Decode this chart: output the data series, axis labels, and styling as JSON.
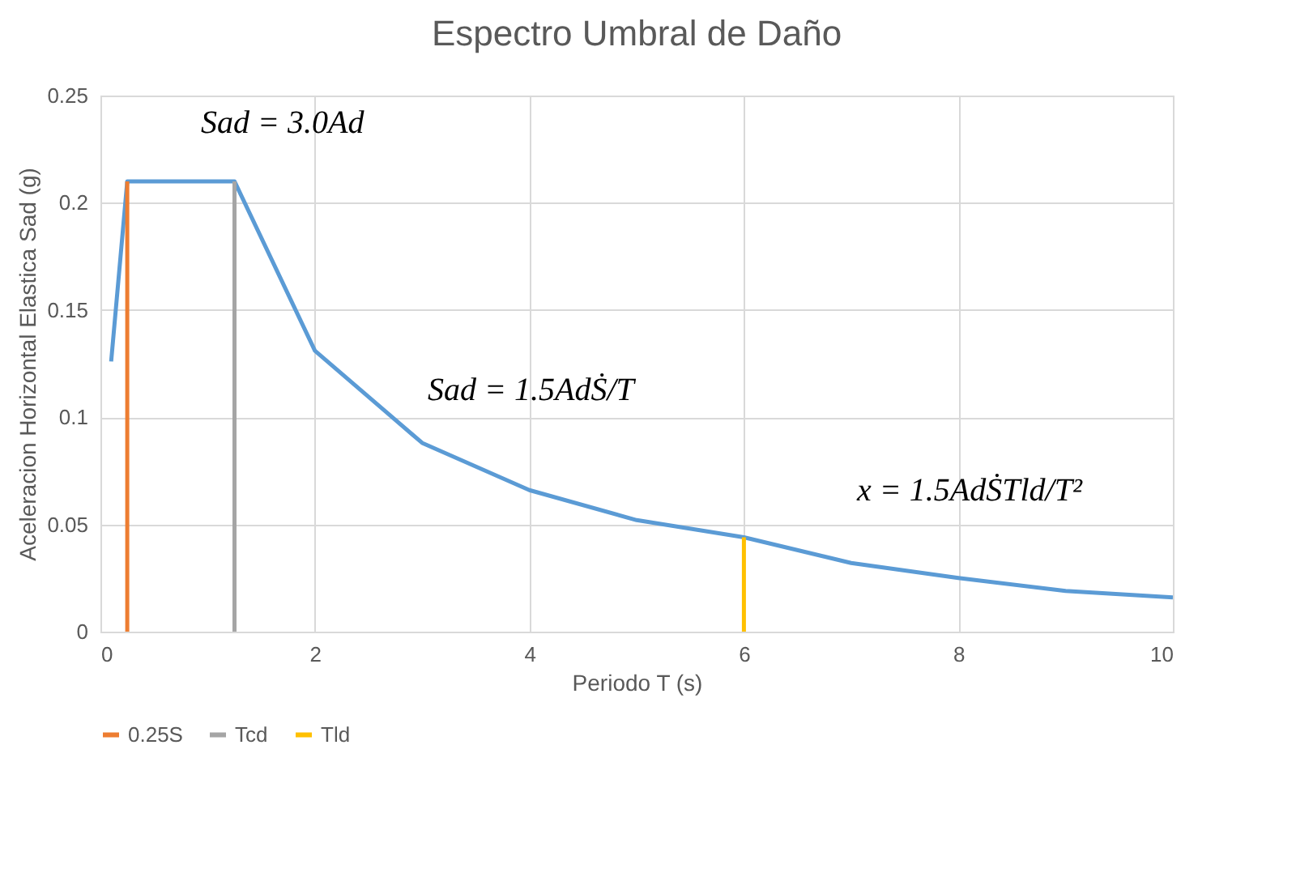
{
  "chart_data": {
    "type": "line",
    "title": "Espectro Umbral de Daño",
    "xlabel": "Periodo T (s)",
    "ylabel": "Aceleracion Horizontal Elastica Sad (g)",
    "xlim": [
      0,
      10
    ],
    "xticks": [
      0,
      2,
      4,
      6,
      8,
      10
    ],
    "ylim": [
      0,
      0.25
    ],
    "yticks": [
      0,
      0.05,
      0.1,
      0.15,
      0.2,
      0.25
    ],
    "grid": true,
    "legend": "bottom",
    "series": [
      {
        "color": "#5b9bd5",
        "x": [
          0.1,
          0.25,
          1.25,
          2,
          3,
          4,
          5,
          6,
          7,
          8,
          9,
          10
        ],
        "values": [
          0.126,
          0.21,
          0.21,
          0.131,
          0.088,
          0.066,
          0.052,
          0.044,
          0.032,
          0.025,
          0.019,
          0.016
        ]
      },
      {
        "name": "0.25S",
        "color": "#ed7d31",
        "x": [
          0.25,
          0.25
        ],
        "values": [
          0,
          0.21
        ]
      },
      {
        "name": "Tcd",
        "color": "#a5a5a5",
        "x": [
          1.25,
          1.25
        ],
        "values": [
          0,
          0.21
        ]
      },
      {
        "name": "Tld",
        "color": "#ffc000",
        "x": [
          6,
          6
        ],
        "values": [
          0,
          0.044
        ]
      }
    ],
    "annotations": [
      "Sad = 3.0Ad",
      "Sad = 1.5AdṠ/T",
      "x = 1.5AdṠTld/T²"
    ]
  }
}
